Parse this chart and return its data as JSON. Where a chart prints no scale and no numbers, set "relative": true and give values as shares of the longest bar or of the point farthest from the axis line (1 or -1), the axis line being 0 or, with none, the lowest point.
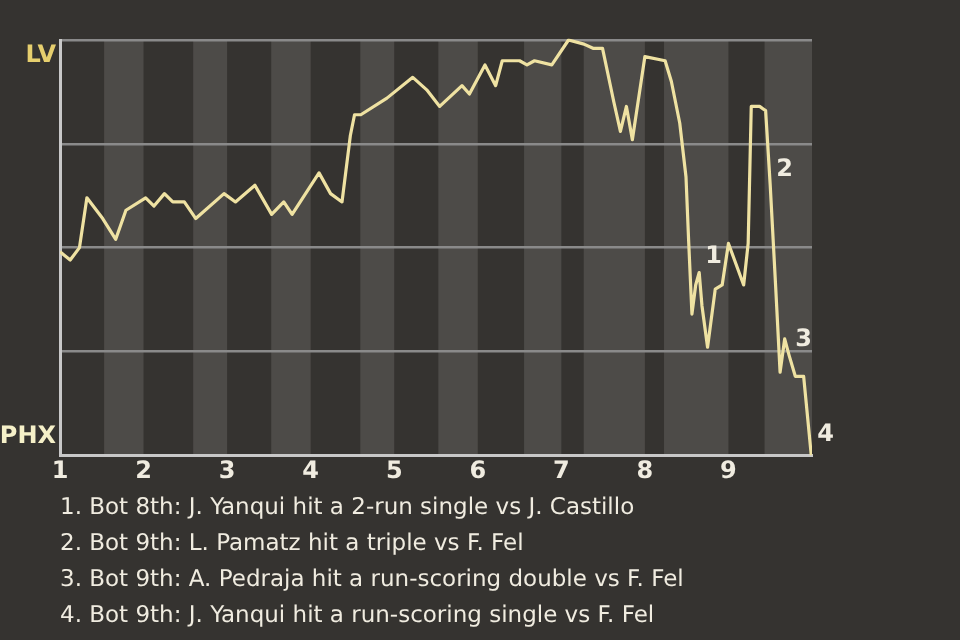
{
  "chart_data": {
    "type": "line",
    "relative": true,
    "xlim": [
      1,
      10
    ],
    "xticks": [
      1,
      2,
      3,
      4,
      5,
      6,
      7,
      8,
      9
    ],
    "grid": "y",
    "legend": false,
    "marker": "none",
    "line_style": "solid",
    "series": [
      {
        "x": [
          1,
          1.122,
          1.233,
          1.322,
          1.511,
          1.667,
          1.789,
          2.025,
          2.125,
          2.25,
          2.35,
          2.488,
          2.625,
          2.963,
          3.1,
          3.333,
          3.533,
          3.678,
          3.778,
          4.1,
          4.238,
          4.375,
          4.475,
          4.525,
          4.6,
          4.913,
          5.222,
          5.389,
          5.544,
          5.811,
          5.9,
          6.086,
          6.214,
          6.293,
          6.5,
          6.589,
          6.679,
          6.886,
          7.086,
          7.271,
          7.379,
          7.493,
          7.629,
          7.707,
          7.779,
          7.85,
          8,
          8.242,
          8.317,
          8.417,
          8.492,
          8.525,
          8.563,
          8.608,
          8.65,
          8.683,
          8.75,
          8.842,
          8.925,
          9,
          9.182,
          9.236,
          9.273,
          9.373,
          9.445,
          9.5,
          9.564,
          9.618,
          9.673,
          9.727,
          9.8,
          9.9,
          9.991
        ],
        "values": [
          0.49,
          0.47,
          0.5,
          0.62,
          0.57,
          0.52,
          0.59,
          0.62,
          0.6,
          0.63,
          0.61,
          0.61,
          0.57,
          0.63,
          0.61,
          0.65,
          0.58,
          0.61,
          0.58,
          0.68,
          0.63,
          0.61,
          0.77,
          0.82,
          0.82,
          0.86,
          0.91,
          0.88,
          0.84,
          0.89,
          0.87,
          0.94,
          0.89,
          0.95,
          0.95,
          0.94,
          0.95,
          0.94,
          1,
          0.99,
          0.98,
          0.98,
          0.85,
          0.78,
          0.84,
          0.76,
          0.96,
          0.95,
          0.9,
          0.8,
          0.67,
          0.51,
          0.34,
          0.41,
          0.44,
          0.36,
          0.26,
          0.4,
          0.41,
          0.51,
          0.41,
          0.51,
          0.84,
          0.84,
          0.83,
          0.65,
          0.41,
          0.2,
          0.28,
          0.24,
          0.19,
          0.19,
          0
        ],
        "color": "#efe2a2"
      }
    ],
    "bands": [
      {
        "axis": "x",
        "from": 1.528,
        "to": 2,
        "color": "#4d4b48"
      },
      {
        "axis": "x",
        "from": 2.594,
        "to": 3,
        "color": "#4d4b48"
      },
      {
        "axis": "x",
        "from": 3.528,
        "to": 4,
        "color": "#4d4b48"
      },
      {
        "axis": "x",
        "from": 4.594,
        "to": 5,
        "color": "#4d4b48"
      },
      {
        "axis": "x",
        "from": 5.528,
        "to": 6,
        "color": "#4d4b48"
      },
      {
        "axis": "x",
        "from": 6.554,
        "to": 7,
        "color": "#4d4b48"
      },
      {
        "axis": "x",
        "from": 7.268,
        "to": 8,
        "color": "#4d4b48"
      },
      {
        "axis": "x",
        "from": 8.229,
        "to": 9,
        "color": "#4d4b48"
      },
      {
        "axis": "x",
        "from": 9.432,
        "to": 10,
        "color": "#4d4b48"
      }
    ],
    "annotations": [
      "LV",
      "PHX",
      {
        "text": "1",
        "x": 8.65,
        "y": 0.44
      },
      {
        "text": "2",
        "x": 9.5,
        "y": 0.65
      },
      {
        "text": "3",
        "x": 9.727,
        "y": 0.24
      },
      {
        "text": "4",
        "x": 9.991,
        "y": 0
      },
      "1. Bot 8th: J. Yanqui hit a 2-run single vs J. Castillo",
      "2. Bot 9th: L. Pamatz hit a triple vs F. Fel",
      "3. Bot 9th: A. Pedraja hit a run-scoring double vs F. Fel",
      "4. Bot 9th: J. Yanqui hit a run-scoring single vs F. Fel"
    ]
  }
}
